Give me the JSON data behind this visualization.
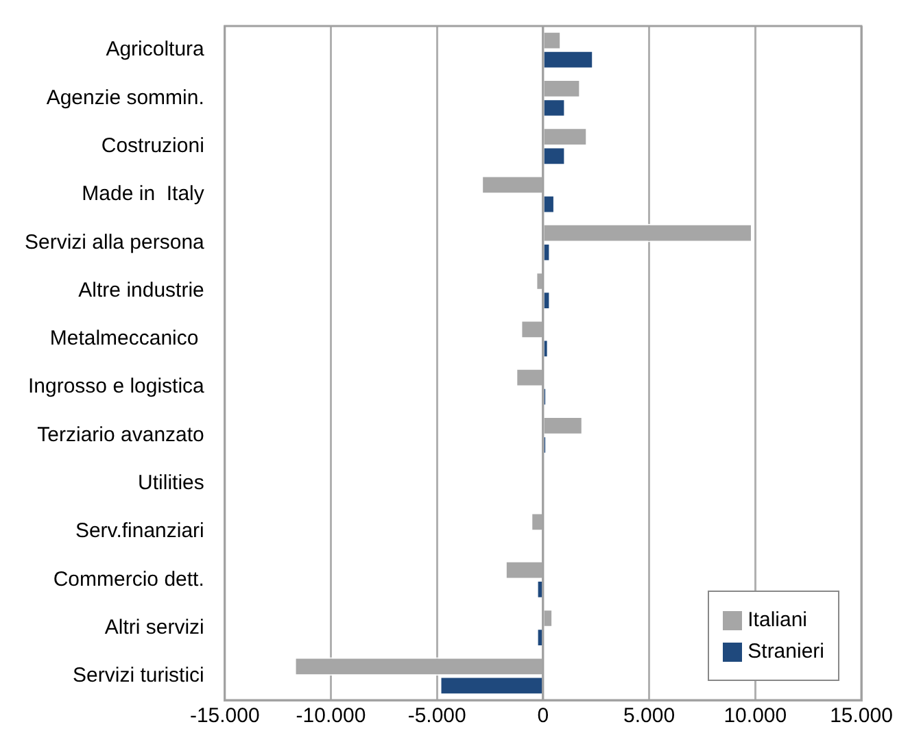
{
  "chart_data": {
    "type": "bar",
    "orientation": "horizontal",
    "categories": [
      "Agricoltura",
      "Agenzie sommin.",
      "Costruzioni",
      "Made in  Italy",
      "Servizi alla persona",
      "Altre industrie",
      "Metalmeccanico ",
      "Ingrosso e logistica",
      "Terziario avanzato",
      "Utilities",
      "Serv.finanziari",
      "Commercio dett.",
      "Altri servizi",
      "Servizi turistici"
    ],
    "series": [
      {
        "name": "Italiani",
        "color": "#a6a6a6",
        "values": [
          850,
          1760,
          2080,
          -2900,
          9860,
          -340,
          -1050,
          -1280,
          1870,
          0,
          -570,
          -1780,
          460,
          -11710
        ]
      },
      {
        "name": "Stranieri",
        "color": "#1f497d",
        "values": [
          2370,
          1050,
          1050,
          550,
          340,
          340,
          250,
          160,
          160,
          0,
          0,
          -300,
          -300,
          -4860
        ]
      }
    ],
    "xlim": [
      -15000,
      15000
    ],
    "xticks": [
      {
        "value": -15000,
        "label": "-15.000"
      },
      {
        "value": -10000,
        "label": "-10.000"
      },
      {
        "value": -5000,
        "label": "-5.000"
      },
      0,
      {
        "value": 5000,
        "label": "5.000"
      },
      {
        "value": 10000,
        "label": "10.000"
      },
      {
        "value": 15000,
        "label": "15.000"
      }
    ],
    "grid": "x",
    "legend": "bottom right"
  }
}
